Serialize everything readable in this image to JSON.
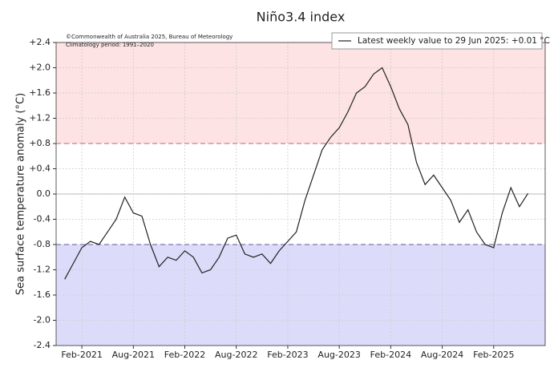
{
  "chart_data": {
    "type": "line",
    "title": "Niño3.4 index",
    "y_label": "Sea surface temperature anomaly (°C)",
    "annotations": [
      "©Commonwealth of Australia 2025, Bureau of Meteorology",
      "Climatology period: 1991–2020"
    ],
    "x": [
      "2020-12",
      "2021-01",
      "2021-02",
      "2021-03",
      "2021-04",
      "2021-05",
      "2021-06",
      "2021-07",
      "2021-08",
      "2021-09",
      "2021-10",
      "2021-11",
      "2021-12",
      "2022-01",
      "2022-02",
      "2022-03",
      "2022-04",
      "2022-05",
      "2022-06",
      "2022-07",
      "2022-08",
      "2022-09",
      "2022-10",
      "2022-11",
      "2022-12",
      "2023-01",
      "2023-02",
      "2023-03",
      "2023-04",
      "2023-05",
      "2023-06",
      "2023-07",
      "2023-08",
      "2023-09",
      "2023-10",
      "2023-11",
      "2023-12",
      "2024-01",
      "2024-02",
      "2024-03",
      "2024-04",
      "2024-05",
      "2024-06",
      "2024-07",
      "2024-08",
      "2024-09",
      "2024-10",
      "2024-11",
      "2024-12",
      "2025-01",
      "2025-02",
      "2025-03",
      "2025-04",
      "2025-05",
      "2025-06"
    ],
    "series": [
      {
        "name": "Latest weekly value to 29 Jun 2025: +0.01 °C",
        "color": "#222222",
        "values": [
          -1.35,
          -1.1,
          -0.85,
          -0.75,
          -0.8,
          -0.6,
          -0.4,
          -0.05,
          -0.3,
          -0.35,
          -0.8,
          -1.15,
          -1.0,
          -1.05,
          -0.9,
          -1.0,
          -1.25,
          -1.2,
          -1.0,
          -0.7,
          -0.65,
          -0.95,
          -1.0,
          -0.95,
          -1.1,
          -0.9,
          -0.75,
          -0.6,
          -0.1,
          0.3,
          0.7,
          0.9,
          1.05,
          1.3,
          1.6,
          1.7,
          1.9,
          2.0,
          1.7,
          1.35,
          1.1,
          0.5,
          0.15,
          0.3,
          0.1,
          -0.1,
          -0.45,
          -0.25,
          -0.6,
          -0.8,
          -0.85,
          -0.3,
          0.1,
          -0.2,
          0.01
        ]
      }
    ],
    "xlim": [
      "2020-11",
      "2025-08"
    ],
    "xticks": [
      {
        "value": "2021-02",
        "label": "Feb-2021"
      },
      {
        "value": "2021-08",
        "label": "Aug-2021"
      },
      {
        "value": "2022-02",
        "label": "Feb-2022"
      },
      {
        "value": "2022-08",
        "label": "Aug-2022"
      },
      {
        "value": "2023-02",
        "label": "Feb-2023"
      },
      {
        "value": "2023-08",
        "label": "Aug-2023"
      },
      {
        "value": "2024-02",
        "label": "Feb-2024"
      },
      {
        "value": "2024-08",
        "label": "Aug-2024"
      },
      {
        "value": "2025-02",
        "label": "Feb-2025"
      }
    ],
    "ylim": [
      -2.4,
      2.4
    ],
    "yticks": [
      {
        "value": -2.4,
        "label": "-2.4"
      },
      {
        "value": -2.0,
        "label": "-2.0"
      },
      {
        "value": -1.6,
        "label": "-1.6"
      },
      {
        "value": -1.2,
        "label": "-1.2"
      },
      {
        "value": -0.8,
        "label": "-0.8"
      },
      {
        "value": -0.4,
        "label": "-0.4"
      },
      {
        "value": 0,
        "label": "0.0"
      },
      {
        "value": 0.4,
        "label": "+0.4"
      },
      {
        "value": 0.8,
        "label": "+0.8"
      },
      {
        "value": 1.2,
        "label": "+1.2"
      },
      {
        "value": 1.6,
        "label": "+1.6"
      },
      {
        "value": 2.0,
        "label": "+2.0"
      },
      {
        "value": 2.4,
        "label": "+2.4"
      }
    ],
    "grid": true,
    "el_nino_threshold": 0.8,
    "el_nino_color": "#fde3e3",
    "la_nina_threshold": -0.8,
    "la_nina_color": "#dcdcfa",
    "legend": "upper right"
  }
}
